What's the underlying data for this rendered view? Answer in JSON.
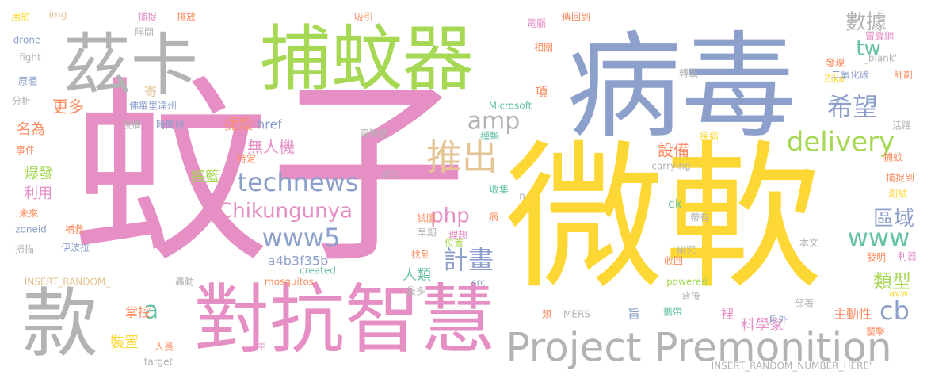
{
  "palette": {
    "pink": "#e58fc4",
    "yellow": "#fdd835",
    "blue": "#8da0cb",
    "green": "#a6d854",
    "gray": "#b3b3b3",
    "orange": "#fc8d62",
    "teal": "#66c2a5",
    "tan": "#e5c494"
  },
  "words": [
    {
      "text": "蚊子",
      "color": "pink"
    },
    {
      "text": "微軟",
      "color": "yellow"
    },
    {
      "text": "病毒",
      "color": "blue"
    },
    {
      "text": "捕蚊器",
      "color": "green"
    },
    {
      "text": "茲卡",
      "color": "gray"
    },
    {
      "text": "對抗智慧",
      "color": "pink"
    },
    {
      "text": "款",
      "color": "gray"
    },
    {
      "text": "Project Premonition",
      "color": "gray"
    },
    {
      "text": "推出",
      "color": "tan"
    },
    {
      "text": "technews",
      "color": "blue"
    },
    {
      "text": "delivery",
      "color": "green"
    },
    {
      "text": "amp",
      "color": "gray"
    },
    {
      "text": "希望",
      "color": "blue"
    },
    {
      "text": "數據",
      "color": "gray"
    },
    {
      "text": "tw",
      "color": "teal"
    },
    {
      "text": "www5",
      "color": "blue"
    },
    {
      "text": "Chikungunya",
      "color": "pink"
    },
    {
      "text": "php",
      "color": "pink"
    },
    {
      "text": "計畫",
      "color": "blue"
    },
    {
      "text": "www",
      "color": "teal"
    },
    {
      "text": "區域",
      "color": "blue"
    },
    {
      "text": "cb",
      "color": "blue"
    },
    {
      "text": "a",
      "color": "teal"
    },
    {
      "text": "類型",
      "color": "green"
    },
    {
      "text": "設備",
      "color": "orange"
    },
    {
      "text": "無人機",
      "color": "pink"
    },
    {
      "text": "更多",
      "color": "orange"
    },
    {
      "text": "寄",
      "color": "tan"
    },
    {
      "text": "名為",
      "color": "orange"
    },
    {
      "text": "爆發",
      "color": "green"
    },
    {
      "text": "利用",
      "color": "pink"
    },
    {
      "text": "搖籃",
      "color": "green"
    },
    {
      "text": "扼殺",
      "color": "orange"
    },
    {
      "text": "href",
      "color": "blue"
    },
    {
      "text": "a4b3f35b",
      "color": "blue"
    },
    {
      "text": "ck",
      "color": "teal"
    },
    {
      "text": "科學家",
      "color": "pink"
    },
    {
      "text": "人類",
      "color": "teal"
    },
    {
      "text": "裝置",
      "color": "yellow"
    },
    {
      "text": "掌控",
      "color": "orange"
    },
    {
      "text": "主動性",
      "color": "orange"
    },
    {
      "text": "項",
      "color": "orange"
    },
    {
      "text": "裡",
      "color": "pink"
    },
    {
      "text": "旨",
      "color": "blue"
    },
    {
      "text": "用於",
      "color": "yellow"
    },
    {
      "text": "img",
      "color": "tan"
    },
    {
      "text": "捕捉",
      "color": "pink"
    },
    {
      "text": "排放",
      "color": "orange"
    },
    {
      "text": "吸引",
      "color": "orange"
    },
    {
      "text": "電腦",
      "color": "pink"
    },
    {
      "text": "傳回到",
      "color": "orange"
    },
    {
      "text": "隔間",
      "color": "gray"
    },
    {
      "text": "drone",
      "color": "blue"
    },
    {
      "text": "fight",
      "color": "gray"
    },
    {
      "text": "原體",
      "color": "blue"
    },
    {
      "text": "分析",
      "color": "gray"
    },
    {
      "text": "佛羅里達州",
      "color": "blue"
    },
    {
      "text": "授權",
      "color": "gray"
    },
    {
      "text": "時間段",
      "color": "blue"
    },
    {
      "text": "事件",
      "color": "orange"
    },
    {
      "text": "未來",
      "color": "orange"
    },
    {
      "text": "zoneid",
      "color": "blue"
    },
    {
      "text": "補救",
      "color": "orange"
    },
    {
      "text": "掃描",
      "color": "gray"
    },
    {
      "text": "伊波拉",
      "color": "blue"
    },
    {
      "text": "INSERT_RANDOM_",
      "color": "tan"
    },
    {
      "text": "轟動",
      "color": "gray"
    },
    {
      "text": "mosquitos",
      "color": "orange"
    },
    {
      "text": "created",
      "color": "teal"
    },
    {
      "text": "最多",
      "color": "gray"
    },
    {
      "text": "人員",
      "color": "orange"
    },
    {
      "text": "target",
      "color": "gray"
    },
    {
      "text": "中",
      "color": "pink"
    },
    {
      "text": "特定",
      "color": "orange"
    },
    {
      "text": "實驗室",
      "color": "gray"
    },
    {
      "text": "近日",
      "color": "gray"
    },
    {
      "text": "Microsoft",
      "color": "teal"
    },
    {
      "text": "種類",
      "color": "teal"
    },
    {
      "text": "收集",
      "color": "teal"
    },
    {
      "text": "n",
      "color": "gray"
    },
    {
      "text": "試圖",
      "color": "orange"
    },
    {
      "text": "早期",
      "color": "gray"
    },
    {
      "text": "位置",
      "color": "green"
    },
    {
      "text": "理想",
      "color": "pink"
    },
    {
      "text": "病",
      "color": "orange"
    },
    {
      "text": "找到",
      "color": "orange"
    },
    {
      "text": "src",
      "color": "blue"
    },
    {
      "text": "發現",
      "color": "orange"
    },
    {
      "text": "相關",
      "color": "orange"
    },
    {
      "text": "雷鋒網",
      "color": "pink"
    },
    {
      "text": "Zika",
      "color": "yellow"
    },
    {
      "text": "_blank'",
      "color": "gray"
    },
    {
      "text": "二氧化碳",
      "color": "blue"
    },
    {
      "text": "計劃",
      "color": "orange"
    },
    {
      "text": "轉載",
      "color": "gray"
    },
    {
      "text": "疾病",
      "color": "yellow"
    },
    {
      "text": "活躍",
      "color": "gray"
    },
    {
      "text": "carrying",
      "color": "gray"
    },
    {
      "text": "捕蚊",
      "color": "orange"
    },
    {
      "text": "捕捉到",
      "color": "orange"
    },
    {
      "text": "測試",
      "color": "yellow"
    },
    {
      "text": "帶有",
      "color": "gray"
    },
    {
      "text": "本文",
      "color": "gray"
    },
    {
      "text": "研究",
      "color": "gray"
    },
    {
      "text": "收回",
      "color": "orange"
    },
    {
      "text": "發明",
      "color": "orange"
    },
    {
      "text": "利器",
      "color": "pink"
    },
    {
      "text": "powered",
      "color": "green"
    },
    {
      "text": "avw",
      "color": "yellow"
    },
    {
      "text": "背後",
      "color": "gray"
    },
    {
      "text": "部署",
      "color": "gray"
    },
    {
      "text": "攜帶",
      "color": "teal"
    },
    {
      "text": "類",
      "color": "orange"
    },
    {
      "text": "MERS",
      "color": "gray"
    },
    {
      "text": "戶外",
      "color": "blue"
    },
    {
      "text": "襲擊",
      "color": "orange"
    },
    {
      "text": "INSERT_RANDOM_NUMBER_HERE'",
      "color": "gray"
    }
  ]
}
